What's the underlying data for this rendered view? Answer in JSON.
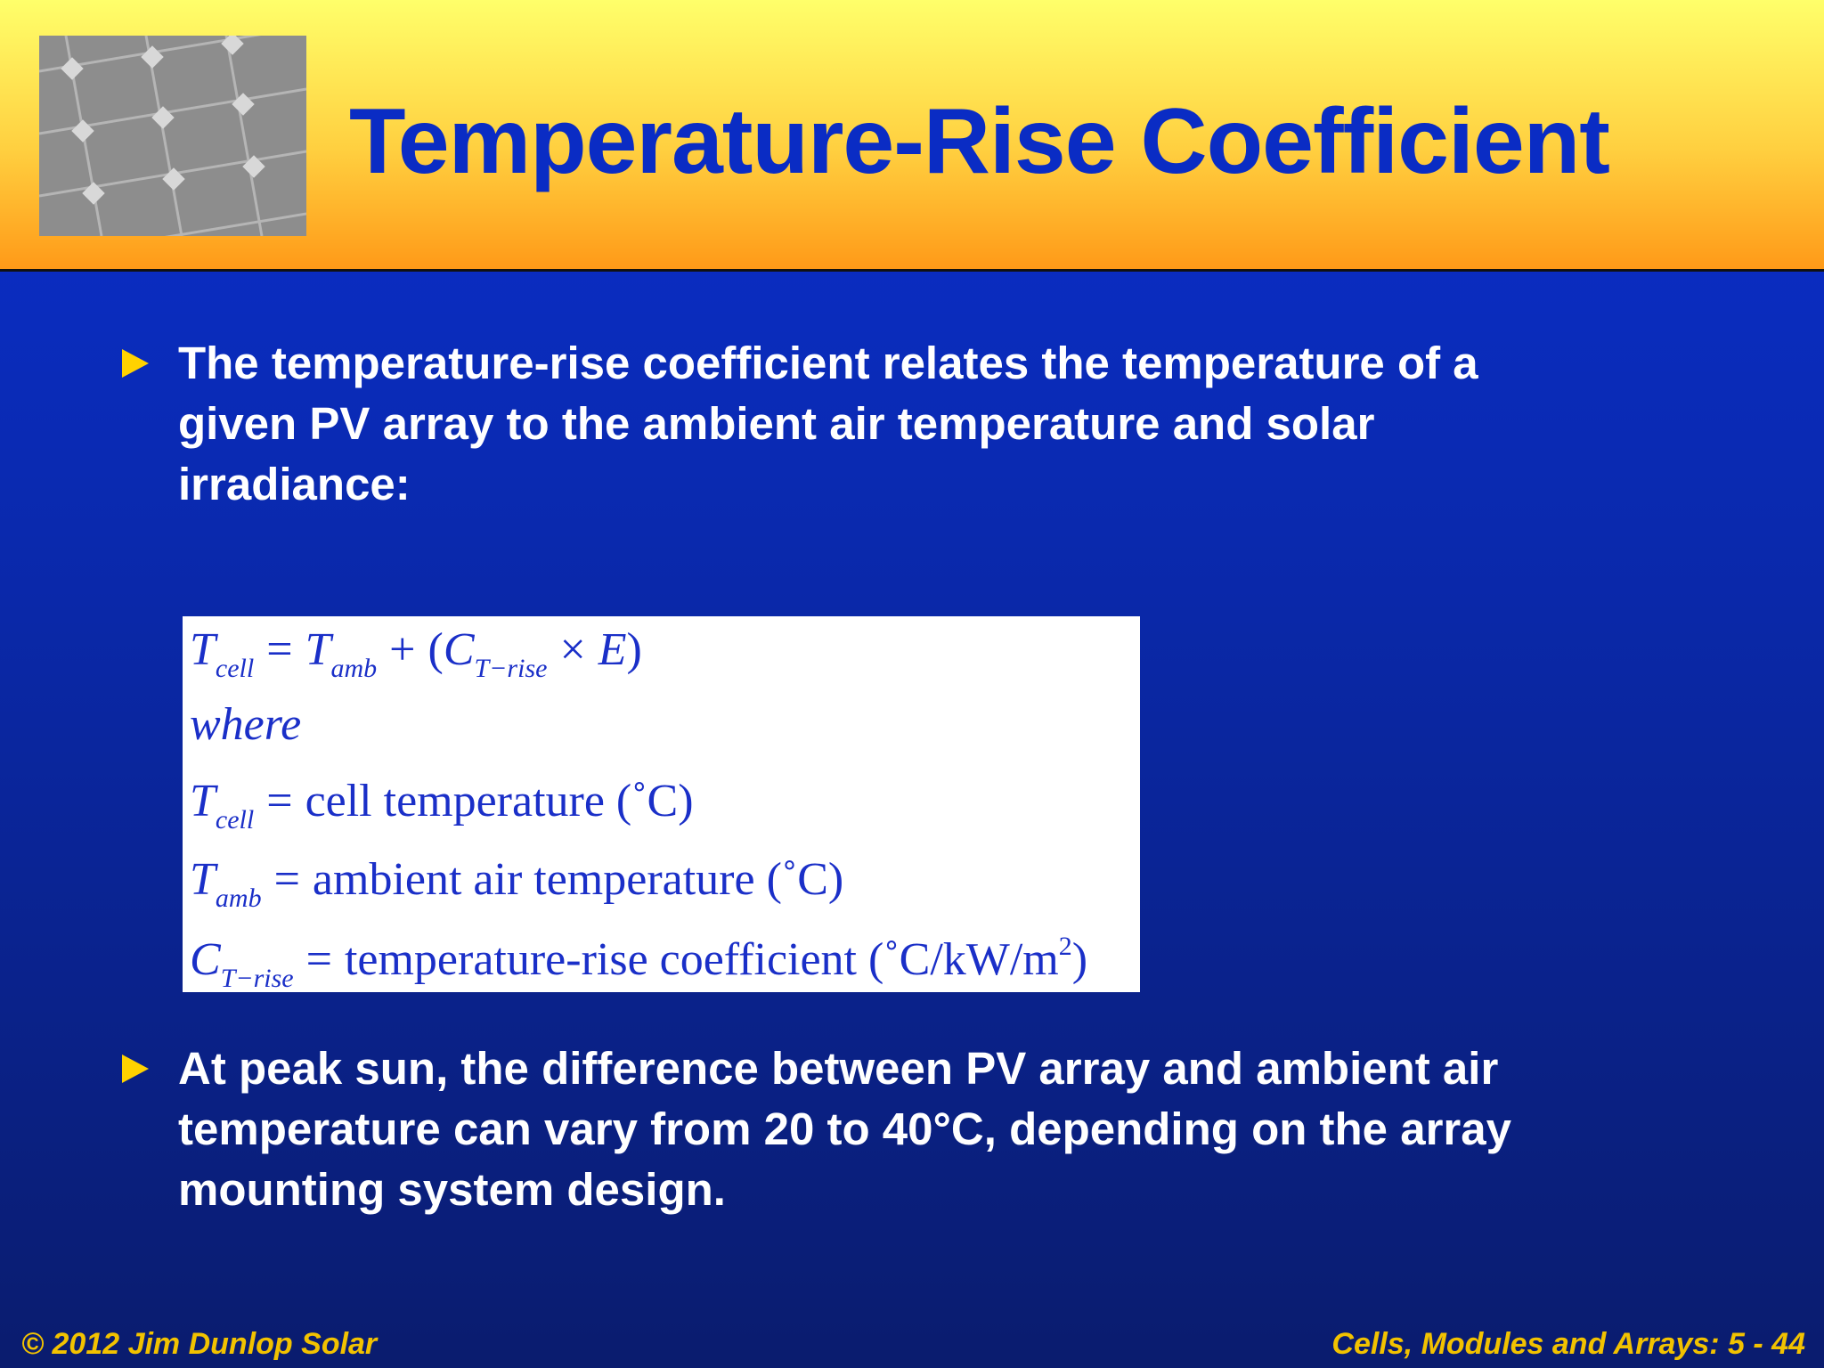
{
  "header": {
    "title": "Temperature-Rise Coefficient"
  },
  "bullets": [
    {
      "lines": [
        "The temperature-rise coefficient relates the temperature of a",
        "given PV array to the ambient air temperature and solar",
        "irradiance:"
      ]
    },
    {
      "lines": [
        "At peak sun, the difference between PV array and ambient air",
        "temperature can vary from 20 to 40°C, depending on the array",
        "mounting system design."
      ]
    }
  ],
  "equation": {
    "formula": [
      "T",
      "cell",
      "=",
      "T",
      "amb",
      "+",
      "(",
      "C",
      "T−rise",
      "×",
      "E",
      ")"
    ],
    "where": "where",
    "definitions": [
      {
        "symbol": "T",
        "subscript": "cell",
        "equals": "=",
        "text": "cell temperature (˚C)"
      },
      {
        "symbol": "T",
        "subscript": "amb",
        "equals": "=",
        "text": "ambient air temperature (˚C)"
      },
      {
        "symbol": "C",
        "subscript": "T−rise",
        "equals": "=",
        "text": "temperature-rise coefficient (˚C/kW/m",
        "superscript": "2",
        "close": ")"
      }
    ]
  },
  "footer": {
    "left": "© 2012 Jim Dunlop Solar",
    "right": "Cells, Modules and Arrays: 5 - 44"
  }
}
